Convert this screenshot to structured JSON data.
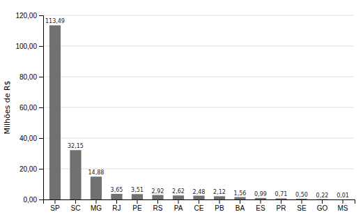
{
  "chart_data": {
    "type": "bar",
    "categories": [
      "SP",
      "SC",
      "MG",
      "RJ",
      "PE",
      "RS",
      "PA",
      "CE",
      "PB",
      "BA",
      "ES",
      "PR",
      "SE",
      "GO",
      "MS"
    ],
    "values": [
      113.49,
      32.15,
      14.88,
      3.65,
      3.51,
      2.92,
      2.62,
      2.48,
      2.12,
      1.56,
      0.99,
      0.71,
      0.5,
      0.22,
      0.01
    ],
    "value_labels": [
      "113,49",
      "32,15",
      "14,88",
      "3,65",
      "3,51",
      "2,92",
      "2,62",
      "2,48",
      "2,12",
      "1,56",
      "0,99",
      "0,71",
      "0,50",
      "0,22",
      "0,01"
    ],
    "data_labels": true,
    "color": "#717171",
    "ylabel": "Milhões de R$",
    "ylim": [
      0,
      120
    ],
    "yticks": [
      {
        "value": 0,
        "label": "0,00"
      },
      {
        "value": 20,
        "label": "20,00"
      },
      {
        "value": 40,
        "label": "40,00"
      },
      {
        "value": 60,
        "label": "60,00"
      },
      {
        "value": 80,
        "label": "80,00"
      },
      {
        "value": 100,
        "label": "100,00"
      },
      {
        "value": 120,
        "label": "120,00"
      }
    ],
    "grid": true
  }
}
